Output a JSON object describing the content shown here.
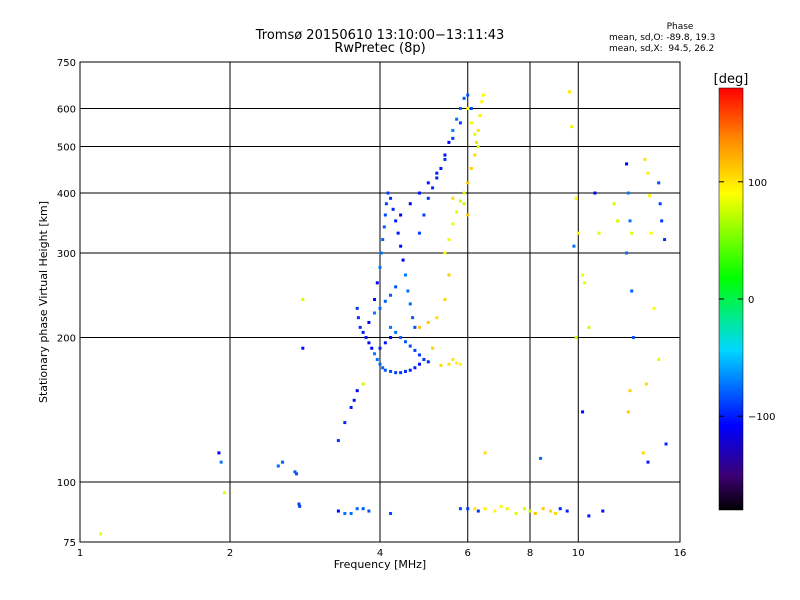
{
  "chart_data": {
    "type": "scatter",
    "title": "Tromsø 20150610 13:10:00−13:11:43",
    "subtitle": "RwPretec (8p)",
    "xlabel": "Frequency [MHz]",
    "ylabel": "Stationary phase Virtual Height [km]",
    "x_scale": "log",
    "y_scale": "log",
    "xlim": [
      1,
      16
    ],
    "ylim": [
      75,
      750
    ],
    "x_ticks": [
      "1",
      "2",
      "4",
      "6",
      "8",
      "10",
      "16"
    ],
    "y_ticks": [
      "750",
      "600",
      "500",
      "400",
      "300",
      "200",
      "100",
      "75"
    ],
    "grid": true,
    "colorbar": {
      "label": "[deg]",
      "range": [
        -180,
        180
      ],
      "ticks": [
        "100",
        "0",
        "−100"
      ]
    },
    "phase_info": {
      "heading": "Phase",
      "line_o": "mean, sd,O: -89.8, 19.3",
      "line_x": "mean, sd,X:  94.5, 26.2"
    },
    "series": [
      {
        "mode": "O",
        "color_phase_mean": -89.8,
        "points": [
          [
            1.9,
            115
          ],
          [
            1.92,
            110
          ],
          [
            2.5,
            108
          ],
          [
            2.55,
            110
          ],
          [
            2.7,
            105
          ],
          [
            2.72,
            104
          ],
          [
            2.75,
            90
          ],
          [
            2.76,
            89
          ],
          [
            3.3,
            122
          ],
          [
            3.4,
            133
          ],
          [
            3.5,
            143
          ],
          [
            3.55,
            148
          ],
          [
            3.6,
            155
          ],
          [
            3.3,
            87
          ],
          [
            3.4,
            86
          ],
          [
            3.5,
            86
          ],
          [
            3.6,
            88
          ],
          [
            3.7,
            88
          ],
          [
            3.8,
            87
          ],
          [
            4.2,
            86
          ],
          [
            3.6,
            230
          ],
          [
            3.62,
            220
          ],
          [
            3.65,
            210
          ],
          [
            3.7,
            205
          ],
          [
            3.75,
            200
          ],
          [
            3.8,
            195
          ],
          [
            3.85,
            190
          ],
          [
            3.9,
            185
          ],
          [
            3.95,
            180
          ],
          [
            4.0,
            176
          ],
          [
            4.05,
            173
          ],
          [
            4.1,
            171
          ],
          [
            4.2,
            170
          ],
          [
            4.3,
            169
          ],
          [
            4.4,
            169
          ],
          [
            4.5,
            170
          ],
          [
            4.6,
            171
          ],
          [
            4.7,
            173
          ],
          [
            4.8,
            176
          ],
          [
            3.9,
            240
          ],
          [
            3.95,
            260
          ],
          [
            4.0,
            280
          ],
          [
            4.02,
            300
          ],
          [
            4.05,
            320
          ],
          [
            4.08,
            340
          ],
          [
            4.1,
            360
          ],
          [
            4.12,
            380
          ],
          [
            4.15,
            400
          ],
          [
            4.2,
            390
          ],
          [
            4.25,
            370
          ],
          [
            4.3,
            350
          ],
          [
            4.35,
            330
          ],
          [
            4.4,
            310
          ],
          [
            4.45,
            290
          ],
          [
            4.5,
            270
          ],
          [
            4.55,
            250
          ],
          [
            4.6,
            235
          ],
          [
            4.65,
            220
          ],
          [
            4.7,
            210
          ],
          [
            4.8,
            330
          ],
          [
            4.9,
            360
          ],
          [
            5.0,
            390
          ],
          [
            5.1,
            410
          ],
          [
            5.2,
            430
          ],
          [
            5.3,
            450
          ],
          [
            5.4,
            480
          ],
          [
            5.5,
            510
          ],
          [
            5.6,
            540
          ],
          [
            5.7,
            570
          ],
          [
            5.8,
            600
          ],
          [
            5.9,
            630
          ],
          [
            6.0,
            640
          ],
          [
            6.1,
            600
          ],
          [
            5.8,
            560
          ],
          [
            5.6,
            520
          ],
          [
            5.4,
            470
          ],
          [
            5.2,
            440
          ],
          [
            5.0,
            420
          ],
          [
            4.8,
            400
          ],
          [
            4.6,
            380
          ],
          [
            4.4,
            360
          ],
          [
            4.2,
            210
          ],
          [
            4.3,
            205
          ],
          [
            4.4,
            200
          ],
          [
            4.5,
            196
          ],
          [
            4.6,
            192
          ],
          [
            4.7,
            188
          ],
          [
            4.8,
            184
          ],
          [
            4.9,
            180
          ],
          [
            5.0,
            178
          ],
          [
            4.0,
            190
          ],
          [
            4.1,
            195
          ],
          [
            4.2,
            200
          ],
          [
            3.8,
            215
          ],
          [
            3.9,
            225
          ],
          [
            4.0,
            230
          ],
          [
            4.1,
            238
          ],
          [
            4.2,
            245
          ],
          [
            4.3,
            255
          ],
          [
            5.8,
            88
          ],
          [
            6.0,
            88
          ],
          [
            6.3,
            87
          ],
          [
            9.2,
            88
          ],
          [
            9.5,
            87
          ],
          [
            10.5,
            85
          ],
          [
            11.2,
            87
          ],
          [
            12.5,
            460
          ],
          [
            12.6,
            400
          ],
          [
            12.7,
            350
          ],
          [
            12.5,
            300
          ],
          [
            12.8,
            250
          ],
          [
            12.9,
            200
          ],
          [
            14.5,
            420
          ],
          [
            14.6,
            380
          ],
          [
            14.7,
            350
          ],
          [
            14.9,
            320
          ],
          [
            15.0,
            120
          ],
          [
            13.8,
            110
          ],
          [
            2.8,
            190
          ],
          [
            10.2,
            140
          ],
          [
            10.8,
            400
          ],
          [
            9.8,
            310
          ],
          [
            8.4,
            112
          ]
        ]
      },
      {
        "mode": "X",
        "color_phase_mean": 94.5,
        "points": [
          [
            1.1,
            78
          ],
          [
            1.95,
            95
          ],
          [
            2.8,
            240
          ],
          [
            3.7,
            160
          ],
          [
            4.8,
            210
          ],
          [
            5.0,
            215
          ],
          [
            5.1,
            190
          ],
          [
            5.3,
            175
          ],
          [
            5.5,
            176
          ],
          [
            5.6,
            180
          ],
          [
            5.7,
            177
          ],
          [
            5.8,
            176
          ],
          [
            5.4,
            300
          ],
          [
            5.5,
            320
          ],
          [
            5.6,
            345
          ],
          [
            5.7,
            365
          ],
          [
            5.8,
            385
          ],
          [
            5.9,
            400
          ],
          [
            6.0,
            420
          ],
          [
            6.1,
            450
          ],
          [
            6.2,
            480
          ],
          [
            6.25,
            510
          ],
          [
            6.3,
            540
          ],
          [
            6.35,
            580
          ],
          [
            6.4,
            620
          ],
          [
            6.45,
            640
          ],
          [
            6.0,
            600
          ],
          [
            6.1,
            560
          ],
          [
            6.2,
            530
          ],
          [
            6.3,
            500
          ],
          [
            5.9,
            380
          ],
          [
            6.0,
            360
          ],
          [
            5.5,
            270
          ],
          [
            5.4,
            240
          ],
          [
            5.6,
            390
          ],
          [
            5.2,
            220
          ],
          [
            6.2,
            88
          ],
          [
            6.5,
            88
          ],
          [
            6.8,
            87
          ],
          [
            7.0,
            89
          ],
          [
            7.2,
            88
          ],
          [
            7.5,
            86
          ],
          [
            7.8,
            88
          ],
          [
            8.0,
            87
          ],
          [
            8.2,
            86
          ],
          [
            8.5,
            88
          ],
          [
            8.8,
            87
          ],
          [
            9.0,
            86
          ],
          [
            6.5,
            115
          ],
          [
            9.6,
            650
          ],
          [
            9.7,
            550
          ],
          [
            9.9,
            390
          ],
          [
            10.0,
            330
          ],
          [
            10.2,
            270
          ],
          [
            10.3,
            260
          ],
          [
            11.0,
            330
          ],
          [
            11.8,
            380
          ],
          [
            12.0,
            350
          ],
          [
            12.6,
            140
          ],
          [
            12.7,
            155
          ],
          [
            13.5,
            115
          ],
          [
            13.7,
            160
          ],
          [
            13.6,
            470
          ],
          [
            13.8,
            440
          ],
          [
            13.9,
            395
          ],
          [
            14.0,
            330
          ],
          [
            14.2,
            230
          ],
          [
            14.5,
            180
          ],
          [
            12.8,
            330
          ],
          [
            10.5,
            210
          ],
          [
            9.9,
            200
          ]
        ]
      }
    ]
  }
}
